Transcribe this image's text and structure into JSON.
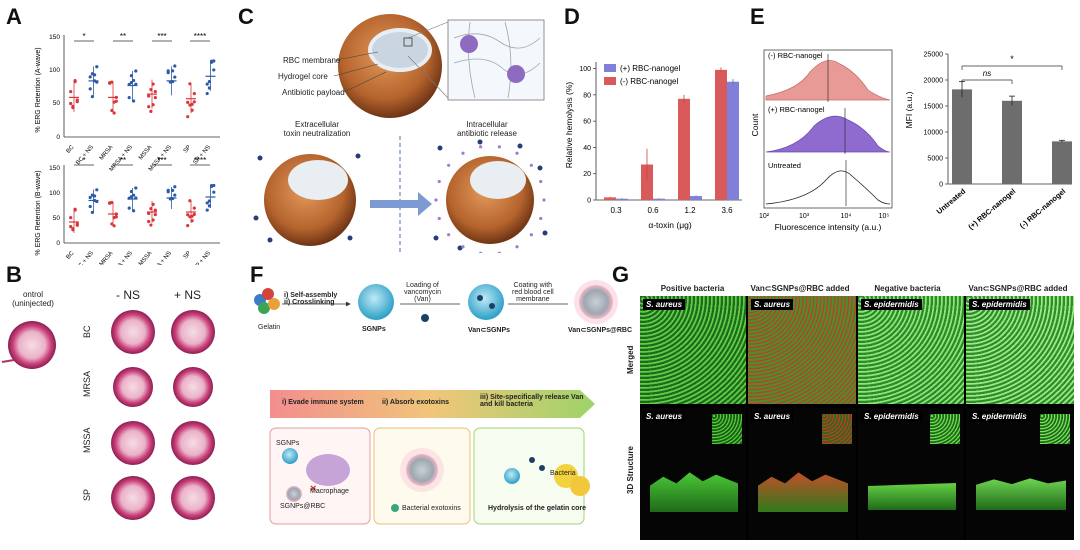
{
  "panels": {
    "A": "A",
    "B": "B",
    "C": "C",
    "D": "D",
    "E": "E",
    "F": "F",
    "G": "G"
  },
  "panelA": {
    "top_ylabel": "% ERG Retention (A-wave)",
    "bottom_ylabel": "% ERG Retention (B-wave)",
    "categories": [
      "BC",
      "BC + NS",
      "MRSA",
      "MRSA + NS",
      "MSSA",
      "MSSA + NS",
      "SP",
      "SP + NS"
    ],
    "yticks": [
      "0",
      "50",
      "100",
      "150"
    ],
    "sig_top": [
      "*",
      "**",
      "***",
      "****"
    ],
    "sig_bottom": [
      "*",
      "**",
      "***",
      "****"
    ],
    "colors": {
      "minus": "#d9353a",
      "plus": "#2c5aa8"
    }
  },
  "panelB": {
    "control": "ontrol\n(uninjected)",
    "col_minus": "- NS",
    "col_plus": "+ NS",
    "rows": [
      "BC",
      "MRSA",
      "MSSA",
      "SP"
    ]
  },
  "panelC": {
    "labels": [
      "RBC membrane",
      "Hydrogel core",
      "Antibiotic payload"
    ],
    "left_caption": "Extracellular\ntoxin neutralization",
    "right_caption": "Intracellular\nantibiotic release"
  },
  "panelD": {
    "ylabel": "Relative hemolysis (%)",
    "xlabel": "α-toxin (μg)",
    "legend": [
      "(+) RBC-nanogel",
      "(-) RBC-nanogel"
    ],
    "yticks": [
      "0",
      "20",
      "40",
      "60",
      "80",
      "100"
    ],
    "colors": {
      "plus": "#8080d8",
      "minus": "#d95a5a"
    }
  },
  "chart_data": [
    {
      "type": "bar",
      "categories": [
        "0.3",
        "0.6",
        "1.2",
        "3.6"
      ],
      "series": [
        {
          "name": "(-) RBC-nanogel",
          "values": [
            2,
            27,
            77,
            99
          ]
        },
        {
          "name": "(+) RBC-nanogel",
          "values": [
            1,
            1,
            3,
            90
          ]
        }
      ],
      "xlabel": "α-toxin (μg)",
      "ylabel": "Relative hemolysis (%)",
      "ylim": [
        0,
        105
      ]
    },
    {
      "type": "bar",
      "categories": [
        "Untreated",
        "(+) RBC-nanogel",
        "(-) RBC-nanogel"
      ],
      "values": [
        18200,
        16000,
        8200
      ],
      "ylabel": "MFI (a.u.)",
      "ylim": [
        0,
        25000
      ]
    }
  ],
  "panelE": {
    "hist_labels": [
      "(-) RBC-nanogel",
      "(+) RBC-nanogel",
      "Untreated"
    ],
    "hist_ylabel": "Count",
    "hist_xlabel": "Fluorescence intensity (a.u.)",
    "hist_xticks": [
      "10²",
      "10³",
      "10⁴",
      "10⁵"
    ],
    "bar_ylabel": "MFI (a.u.)",
    "bar_yticks": [
      "0",
      "5000",
      "10000",
      "15000",
      "20000",
      "25000"
    ],
    "bar_categories": [
      "Untreated",
      "(+) RBC-nanogel",
      "(-) RBC-nanogel"
    ],
    "sig_ns": "ns",
    "sig_star": "*"
  },
  "panelF": {
    "gelatin": "Gelatin",
    "step1": "i) Self-assembly\nii) Crosslinking",
    "sgnps": "SGNPs",
    "loading": "Loading of\nvancomycin\n(Van)",
    "van_sgnps": "Van⊂SGNPs",
    "coating": "Coating with\nred blood cell\nmembrane",
    "van_sgnps_rbc": "Van⊂SGNPs@RBC",
    "arrow_steps": [
      "i) Evade immune system",
      "ii) Absorb exotoxins",
      "iii) Site-specifically release Van\nand kill bacteria"
    ],
    "box1_sgnps": "SGNPs",
    "box1_macrophage": "Macrophage",
    "box1_rbc": "SGNPs@RBC",
    "box2": "Bacterial exotoxins",
    "box3_bacteria": "Bacteria",
    "box3": "Hydrolysis of the gelatin core"
  },
  "panelG": {
    "col_headers": [
      "Positive bacteria",
      "Van⊂SGNPs@RBC added",
      "Negative bacteria",
      "Van⊂SGNPs@RBC added"
    ],
    "row_labels": [
      "Merged",
      "3D Structure"
    ],
    "tile_labels": [
      "S. aureus",
      "S. aureus",
      "S. epidermidis",
      "S. epidermidis"
    ]
  }
}
